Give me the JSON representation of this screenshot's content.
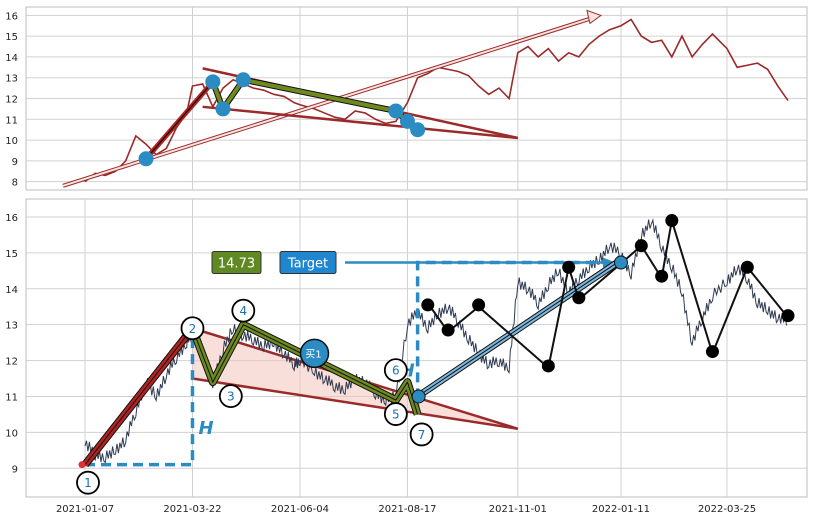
{
  "chart_data": [
    {
      "type": "line",
      "ylim": [
        7.6,
        16.4
      ],
      "yticks": [
        8,
        9,
        10,
        11,
        12,
        13,
        14,
        15,
        16
      ],
      "series": [
        {
          "color": "#9b2a2a",
          "x": [
            "2021-01-07",
            "2021-01-14",
            "2021-01-21",
            "2021-01-28",
            "2021-02-04",
            "2021-02-11",
            "2021-02-18",
            "2021-02-25",
            "2021-03-04",
            "2021-03-11",
            "2021-03-18",
            "2021-03-22",
            "2021-03-29",
            "2021-04-05",
            "2021-04-12",
            "2021-04-19",
            "2021-04-26",
            "2021-05-03",
            "2021-05-10",
            "2021-05-17",
            "2021-05-24",
            "2021-05-31",
            "2021-06-04",
            "2021-06-14",
            "2021-06-21",
            "2021-06-28",
            "2021-07-05",
            "2021-07-12",
            "2021-07-19",
            "2021-07-26",
            "2021-08-02",
            "2021-08-09",
            "2021-08-17",
            "2021-08-24",
            "2021-08-31",
            "2021-09-07",
            "2021-09-14",
            "2021-09-21",
            "2021-09-28",
            "2021-10-05",
            "2021-10-12",
            "2021-10-19",
            "2021-10-26",
            "2021-11-01",
            "2021-11-08",
            "2021-11-15",
            "2021-11-22",
            "2021-11-29",
            "2021-12-06",
            "2021-12-13",
            "2021-12-20",
            "2021-12-27",
            "2022-01-03",
            "2022-01-11",
            "2022-01-18",
            "2022-01-25",
            "2022-02-01",
            "2022-02-08",
            "2022-02-15",
            "2022-02-22",
            "2022-03-01",
            "2022-03-08",
            "2022-03-15",
            "2022-03-25",
            "2022-04-01",
            "2022-04-08",
            "2022-04-15",
            "2022-04-22",
            "2022-04-29",
            "2022-05-06"
          ],
          "y": [
            8.0,
            8.4,
            8.3,
            8.5,
            9.0,
            10.2,
            9.8,
            9.3,
            9.6,
            10.6,
            11.3,
            12.6,
            12.7,
            11.6,
            12.5,
            12.9,
            12.7,
            12.5,
            12.4,
            12.2,
            12.1,
            11.8,
            11.7,
            11.5,
            11.3,
            11.1,
            11.0,
            11.4,
            11.3,
            11.0,
            10.8,
            10.9,
            11.8,
            13.0,
            13.2,
            13.5,
            13.4,
            13.3,
            13.1,
            12.6,
            12.2,
            12.5,
            12.0,
            14.2,
            14.5,
            14.0,
            14.4,
            13.8,
            14.2,
            14.0,
            14.6,
            15.0,
            15.3,
            15.5,
            15.8,
            15.0,
            14.7,
            14.8,
            14.0,
            15.0,
            14.0,
            14.6,
            15.1,
            14.4,
            13.5,
            13.6,
            13.7,
            13.4,
            12.6,
            11.9
          ]
        }
      ],
      "trendlines": [
        {
          "color": "#9b2a2a",
          "x": [
            "2021-03-22",
            "2021-06-04"
          ],
          "y": [
            13.6,
            11.2
          ],
          "note": ""
        },
        {
          "color": "#9b2a2a",
          "x": [
            "2021-03-22",
            "2021-11-01"
          ],
          "y": [
            11.6,
            10.1
          ],
          "note": ""
        }
      ],
      "zigzag_points": [
        {
          "x": "2021-02-18",
          "y": 9.1
        },
        {
          "x": "2021-04-05",
          "y": 12.8
        },
        {
          "x": "2021-04-12",
          "y": 11.5
        },
        {
          "x": "2021-04-26",
          "y": 12.9
        },
        {
          "x": "2021-08-09",
          "y": 11.4
        },
        {
          "x": "2021-08-17",
          "y": 10.9
        },
        {
          "x": "2021-08-24",
          "y": 10.5
        }
      ],
      "xaxis_labels": []
    },
    {
      "type": "line",
      "ylim": [
        8.2,
        16.5
      ],
      "yticks": [
        9,
        10,
        11,
        12,
        13,
        14,
        15,
        16
      ],
      "xticks": [
        "2021-01-07",
        "2021-03-22",
        "2021-06-04",
        "2021-08-17",
        "2021-11-01",
        "2022-01-11",
        "2022-03-25"
      ],
      "price": {
        "x": [
          "2021-01-07",
          "2021-01-14",
          "2021-01-21",
          "2021-01-28",
          "2021-02-04",
          "2021-02-11",
          "2021-02-18",
          "2021-02-25",
          "2021-03-04",
          "2021-03-11",
          "2021-03-18",
          "2021-03-22",
          "2021-03-29",
          "2021-04-05",
          "2021-04-12",
          "2021-04-19",
          "2021-04-26",
          "2021-05-03",
          "2021-05-10",
          "2021-05-17",
          "2021-05-24",
          "2021-05-31",
          "2021-06-04",
          "2021-06-14",
          "2021-06-21",
          "2021-06-28",
          "2021-07-05",
          "2021-07-12",
          "2021-07-19",
          "2021-07-26",
          "2021-08-02",
          "2021-08-09",
          "2021-08-17",
          "2021-08-24",
          "2021-08-31",
          "2021-09-07",
          "2021-09-14",
          "2021-09-21",
          "2021-09-28",
          "2021-10-05",
          "2021-10-12",
          "2021-10-19",
          "2021-10-26",
          "2021-11-01",
          "2021-11-08",
          "2021-11-15",
          "2021-11-22",
          "2021-11-29",
          "2021-12-06",
          "2021-12-13",
          "2021-12-20",
          "2021-12-27",
          "2022-01-03",
          "2022-01-11",
          "2022-01-18",
          "2022-01-25",
          "2022-02-01",
          "2022-02-08",
          "2022-02-15",
          "2022-02-22",
          "2022-03-01",
          "2022-03-08",
          "2022-03-15",
          "2022-03-25",
          "2022-04-01",
          "2022-04-08",
          "2022-04-15",
          "2022-04-22",
          "2022-04-29",
          "2022-05-06"
        ],
        "y": [
          9.7,
          9.4,
          9.3,
          9.5,
          9.8,
          10.6,
          11.4,
          11.0,
          11.6,
          12.1,
          12.5,
          12.8,
          12.2,
          11.4,
          12.3,
          12.9,
          12.7,
          12.6,
          12.4,
          12.5,
          12.2,
          11.9,
          12.0,
          11.7,
          11.5,
          11.3,
          11.2,
          11.5,
          11.4,
          11.1,
          10.9,
          11.0,
          13.0,
          13.4,
          12.9,
          13.3,
          13.5,
          13.1,
          12.6,
          12.2,
          11.9,
          12.0,
          11.8,
          14.2,
          14.0,
          13.6,
          14.1,
          14.5,
          13.9,
          14.3,
          14.6,
          14.8,
          15.2,
          15.0,
          14.4,
          15.5,
          15.9,
          15.2,
          14.6,
          13.9,
          12.5,
          13.2,
          13.8,
          14.2,
          14.6,
          14.3,
          13.6,
          13.4,
          13.2,
          13.1
        ]
      },
      "pattern_lines": [
        {
          "name": "red",
          "color": "#b22222",
          "x": [
            "2021-01-07",
            "2021-03-22"
          ],
          "y": [
            9.1,
            12.9
          ]
        },
        {
          "name": "green",
          "color": "#6e8a1f",
          "x": [
            "2021-03-22",
            "2021-04-05",
            "2021-04-26",
            "2021-08-09",
            "2021-08-17",
            "2021-08-24"
          ],
          "y": [
            12.9,
            11.4,
            13.0,
            10.9,
            11.4,
            10.5
          ]
        },
        {
          "name": "blue",
          "color": "#2b8cc4",
          "x": [
            "2021-08-24",
            "2022-01-11"
          ],
          "y": [
            11.0,
            14.8
          ]
        },
        {
          "name": "black",
          "color": "#111111",
          "x": [
            "2021-08-31",
            "2021-09-14",
            "2021-10-05",
            "2021-11-22",
            "2021-12-06",
            "2021-12-13",
            "2022-01-11",
            "2022-01-25",
            "2022-02-08",
            "2022-02-15",
            "2022-03-15",
            "2022-04-08",
            "2022-05-06"
          ],
          "y": [
            13.6,
            12.8,
            13.5,
            11.8,
            14.6,
            13.7,
            14.7,
            15.2,
            14.3,
            15.9,
            12.2,
            14.6,
            13.2
          ]
        }
      ],
      "triangle": {
        "upper": {
          "x": [
            "2021-03-22",
            "2021-11-01"
          ],
          "y": [
            12.9,
            10.1
          ]
        },
        "lower": {
          "x": [
            "2021-03-22",
            "2021-11-01"
          ],
          "y": [
            11.5,
            10.1
          ]
        }
      },
      "black_dots": [
        {
          "x": "2021-08-31",
          "y": 13.55
        },
        {
          "x": "2021-09-14",
          "y": 12.85
        },
        {
          "x": "2021-10-05",
          "y": 13.55
        },
        {
          "x": "2021-11-22",
          "y": 11.85
        },
        {
          "x": "2021-12-06",
          "y": 14.6
        },
        {
          "x": "2021-12-13",
          "y": 13.75
        },
        {
          "x": "2022-01-25",
          "y": 15.2
        },
        {
          "x": "2022-02-08",
          "y": 14.35
        },
        {
          "x": "2022-02-15",
          "y": 15.9
        },
        {
          "x": "2022-03-15",
          "y": 12.25
        },
        {
          "x": "2022-04-08",
          "y": 14.6
        },
        {
          "x": "2022-05-06",
          "y": 13.25
        }
      ],
      "numbered_points": [
        {
          "label": "1",
          "x": "2021-01-07",
          "y": 9.1
        },
        {
          "label": "2",
          "x": "2021-03-22",
          "y": 12.9
        },
        {
          "label": "3",
          "x": "2021-04-05",
          "y": 11.4
        },
        {
          "label": "4",
          "x": "2021-04-26",
          "y": 13.0
        },
        {
          "label": "5",
          "x": "2021-08-09",
          "y": 10.9
        },
        {
          "label": "6",
          "x": "2021-08-09",
          "y": 11.4
        },
        {
          "label": "7",
          "x": "2021-08-24",
          "y": 10.5
        }
      ],
      "target": {
        "value": 14.73,
        "value_label": "14.73",
        "label": "Target"
      },
      "buy": {
        "label": "买1",
        "x": "2021-06-14",
        "y": 12.2
      },
      "H_label": "H"
    }
  ],
  "colors": {
    "grid": "#d0d0d0",
    "frame": "#bdbdbd",
    "top_price": "#9b2a2a",
    "bottom_price": "#2f3b52",
    "red": "#b22222",
    "green": "#6e8a1f",
    "blue": "#2b8cc4",
    "fill_pink": "#f4c4bc",
    "target_box": "#1f86cf",
    "value_box": "#5f8a23"
  }
}
